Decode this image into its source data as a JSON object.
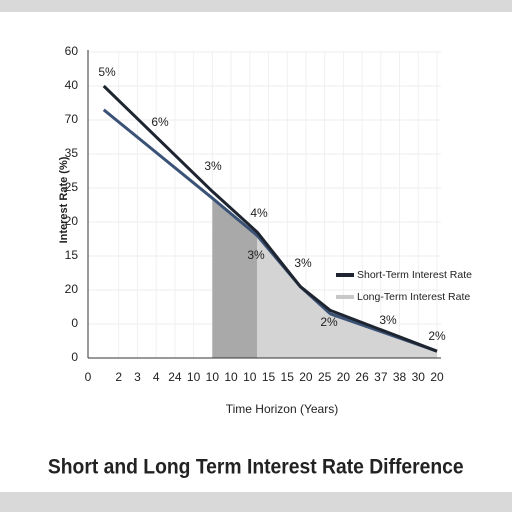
{
  "chart_data": {
    "type": "line",
    "title": "Short and Long Term Interest Rate Difference",
    "x_label": "Time Horizon (Years)",
    "y_label": "Interest Rate (%)",
    "xlim": [
      0,
      18
    ],
    "xticks": [
      0,
      {
        "value": 1,
        "label": "2"
      },
      {
        "value": 2,
        "label": "3"
      },
      {
        "value": 3,
        "label": "4"
      },
      {
        "value": 4,
        "label": "24"
      },
      {
        "value": 5,
        "label": "10"
      },
      {
        "value": 6,
        "label": "10"
      },
      {
        "value": 7,
        "label": "10"
      },
      {
        "value": 8,
        "label": "10"
      },
      {
        "value": 9,
        "label": "15"
      },
      {
        "value": 10,
        "label": "15"
      },
      {
        "value": 11,
        "label": "20"
      },
      {
        "value": 12,
        "label": "25"
      },
      {
        "value": 13,
        "label": "20"
      },
      {
        "value": 14,
        "label": "26"
      },
      {
        "value": 15,
        "label": "37"
      },
      {
        "value": 16,
        "label": "38"
      },
      {
        "value": 17,
        "label": "30"
      },
      {
        "value": 18,
        "label": "20"
      }
    ],
    "ylim": [
      0,
      90
    ],
    "yticks": [
      0,
      {
        "value": 10,
        "label": "0"
      },
      20,
      {
        "value": 30,
        "label": "15"
      },
      {
        "value": 40,
        "label": "20"
      },
      {
        "value": 50,
        "label": "25"
      },
      {
        "value": 60,
        "label": "35"
      },
      70,
      {
        "value": 80,
        "label": "40"
      },
      {
        "value": 90,
        "label": "60"
      }
    ],
    "grid": true,
    "series": [
      {
        "name": "Short-Term Interest Rate",
        "color": "#1e2530",
        "x": [
          0.2,
          6,
          8.4,
          10.7,
          12.3,
          18
        ],
        "values": [
          80,
          49,
          37,
          21,
          14,
          2
        ]
      },
      {
        "name": "Long-Term Interest Rate",
        "color": "#3b5277",
        "x": [
          0.2,
          6,
          8.4,
          10.7,
          12.3,
          18
        ],
        "values": [
          73,
          47,
          36,
          21,
          13,
          2
        ]
      }
    ],
    "annotations": [
      "5%",
      "6%",
      "3%",
      "4%",
      "3%",
      "3%",
      "2%",
      "3%",
      "2%"
    ]
  }
}
